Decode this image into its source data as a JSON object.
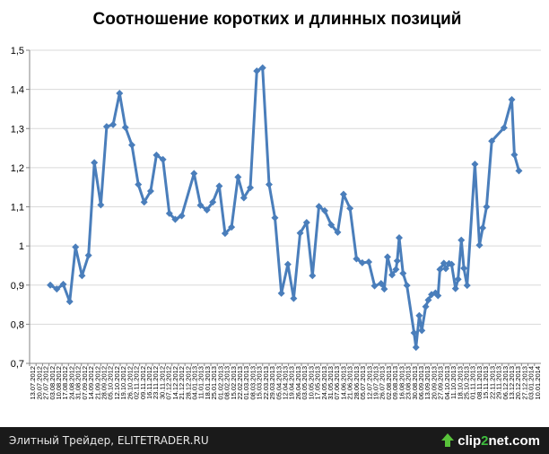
{
  "chart_data": {
    "type": "line",
    "title": "Соотношение коротких и длинных позиций",
    "ylim": [
      0.7,
      1.5
    ],
    "yticks": [
      "0,7",
      "0,8",
      "0,9",
      "1",
      "1,1",
      "1,2",
      "1,3",
      "1,4",
      "1,5"
    ],
    "grid": true,
    "legend": "none",
    "series_color": "#4a7ebb",
    "x_labels": [
      "13.07.2012",
      "20.07.2012",
      "27.07.2012",
      "03.08.2012",
      "10.08.2012",
      "17.08.2012",
      "24.08.2012",
      "31.08.2012",
      "07.09.2012",
      "14.09.2012",
      "21.09.2012",
      "28.09.2012",
      "05.10.2012",
      "12.10.2012",
      "19.10.2012",
      "26.10.2012",
      "02.11.2012",
      "09.11.2012",
      "16.11.2012",
      "23.11.2012",
      "30.11.2012",
      "07.12.2012",
      "14.12.2012",
      "21.12.2012",
      "28.12.2012",
      "04.01.2013",
      "11.01.2013",
      "18.01.2013",
      "25.01.2013",
      "01.02.2013",
      "08.02.2013",
      "15.02.2013",
      "22.02.2013",
      "01.03.2013",
      "08.03.2013",
      "15.03.2013",
      "22.03.2013",
      "29.03.2013",
      "05.04.2013",
      "12.04.2013",
      "19.04.2013",
      "26.04.2013",
      "03.05.2013",
      "10.05.2013",
      "17.05.2013",
      "24.05.2013",
      "31.05.2013",
      "07.06.2013",
      "14.06.2013",
      "21.06.2013",
      "28.06.2013",
      "05.07.2013",
      "12.07.2013",
      "19.07.2013",
      "26.07.2013",
      "02.08.2013",
      "09.08.2013",
      "16.08.2013",
      "23.08.2013",
      "30.08.2013",
      "06.09.2013",
      "13.09.2013",
      "20.09.2013",
      "27.09.2013",
      "04.10.2013",
      "11.10.2013",
      "18.10.2013",
      "25.10.2013",
      "01.11.2013",
      "08.11.2013",
      "15.11.2013",
      "22.11.2013",
      "29.11.2013",
      "06.12.2013",
      "13.12.2013",
      "20.12.2013",
      "27.12.2013",
      "03.01.2014",
      "10.01.2014"
    ],
    "points": [
      {
        "x": 3.2,
        "y": 0.9
      },
      {
        "x": 4.2,
        "y": 0.89
      },
      {
        "x": 5.2,
        "y": 0.902
      },
      {
        "x": 6.2,
        "y": 0.858
      },
      {
        "x": 7.1,
        "y": 0.997
      },
      {
        "x": 8.1,
        "y": 0.924
      },
      {
        "x": 9.1,
        "y": 0.976
      },
      {
        "x": 10.0,
        "y": 1.213
      },
      {
        "x": 11.0,
        "y": 1.105
      },
      {
        "x": 11.9,
        "y": 1.305
      },
      {
        "x": 12.9,
        "y": 1.31
      },
      {
        "x": 13.9,
        "y": 1.39
      },
      {
        "x": 14.8,
        "y": 1.303
      },
      {
        "x": 15.8,
        "y": 1.258
      },
      {
        "x": 16.8,
        "y": 1.157
      },
      {
        "x": 17.7,
        "y": 1.112
      },
      {
        "x": 18.7,
        "y": 1.14
      },
      {
        "x": 19.6,
        "y": 1.232
      },
      {
        "x": 20.6,
        "y": 1.221
      },
      {
        "x": 21.6,
        "y": 1.083
      },
      {
        "x": 22.5,
        "y": 1.068
      },
      {
        "x": 23.5,
        "y": 1.077
      },
      {
        "x": 25.4,
        "y": 1.185
      },
      {
        "x": 26.4,
        "y": 1.104
      },
      {
        "x": 27.4,
        "y": 1.092
      },
      {
        "x": 28.3,
        "y": 1.112
      },
      {
        "x": 29.3,
        "y": 1.153
      },
      {
        "x": 30.2,
        "y": 1.032
      },
      {
        "x": 31.2,
        "y": 1.048
      },
      {
        "x": 32.2,
        "y": 1.176
      },
      {
        "x": 33.1,
        "y": 1.123
      },
      {
        "x": 34.1,
        "y": 1.149
      },
      {
        "x": 35.1,
        "y": 1.447
      },
      {
        "x": 36.0,
        "y": 1.455
      },
      {
        "x": 37.0,
        "y": 1.157
      },
      {
        "x": 37.9,
        "y": 1.072
      },
      {
        "x": 38.9,
        "y": 0.879
      },
      {
        "x": 39.9,
        "y": 0.953
      },
      {
        "x": 40.8,
        "y": 0.866
      },
      {
        "x": 41.8,
        "y": 1.033
      },
      {
        "x": 42.8,
        "y": 1.06
      },
      {
        "x": 43.7,
        "y": 0.924
      },
      {
        "x": 44.7,
        "y": 1.101
      },
      {
        "x": 45.6,
        "y": 1.09
      },
      {
        "x": 46.6,
        "y": 1.054
      },
      {
        "x": 47.6,
        "y": 1.035
      },
      {
        "x": 48.5,
        "y": 1.132
      },
      {
        "x": 49.5,
        "y": 1.096
      },
      {
        "x": 50.5,
        "y": 0.967
      },
      {
        "x": 51.4,
        "y": 0.957
      },
      {
        "x": 52.4,
        "y": 0.959
      },
      {
        "x": 53.3,
        "y": 0.898
      },
      {
        "x": 54.3,
        "y": 0.904
      },
      {
        "x": 54.8,
        "y": 0.89
      },
      {
        "x": 55.3,
        "y": 0.972
      },
      {
        "x": 56.0,
        "y": 0.926
      },
      {
        "x": 56.6,
        "y": 0.94
      },
      {
        "x": 56.8,
        "y": 0.962
      },
      {
        "x": 57.1,
        "y": 1.021
      },
      {
        "x": 57.7,
        "y": 0.93
      },
      {
        "x": 58.3,
        "y": 0.899
      },
      {
        "x": 59.4,
        "y": 0.778
      },
      {
        "x": 59.7,
        "y": 0.741
      },
      {
        "x": 60.2,
        "y": 0.822
      },
      {
        "x": 60.6,
        "y": 0.784
      },
      {
        "x": 61.2,
        "y": 0.845
      },
      {
        "x": 61.6,
        "y": 0.862
      },
      {
        "x": 62.1,
        "y": 0.876
      },
      {
        "x": 62.7,
        "y": 0.88
      },
      {
        "x": 63.1,
        "y": 0.873
      },
      {
        "x": 63.4,
        "y": 0.94
      },
      {
        "x": 64.0,
        "y": 0.956
      },
      {
        "x": 64.3,
        "y": 0.942
      },
      {
        "x": 64.8,
        "y": 0.955
      },
      {
        "x": 65.2,
        "y": 0.953
      },
      {
        "x": 65.8,
        "y": 0.891
      },
      {
        "x": 66.2,
        "y": 0.915
      },
      {
        "x": 66.7,
        "y": 1.015
      },
      {
        "x": 67.1,
        "y": 0.943
      },
      {
        "x": 67.6,
        "y": 0.899
      },
      {
        "x": 68.8,
        "y": 1.209
      },
      {
        "x": 69.5,
        "y": 1.002
      },
      {
        "x": 70.0,
        "y": 1.046
      },
      {
        "x": 70.6,
        "y": 1.1
      },
      {
        "x": 71.4,
        "y": 1.268
      },
      {
        "x": 73.3,
        "y": 1.302
      },
      {
        "x": 74.5,
        "y": 1.374
      },
      {
        "x": 74.9,
        "y": 1.233
      },
      {
        "x": 75.6,
        "y": 1.192
      }
    ]
  },
  "footer": {
    "left_text": "Элитный Трейдер, ELITETRADER.RU",
    "brand_prefix": "clip",
    "brand_num": "2",
    "brand_suffix": "net.com"
  }
}
